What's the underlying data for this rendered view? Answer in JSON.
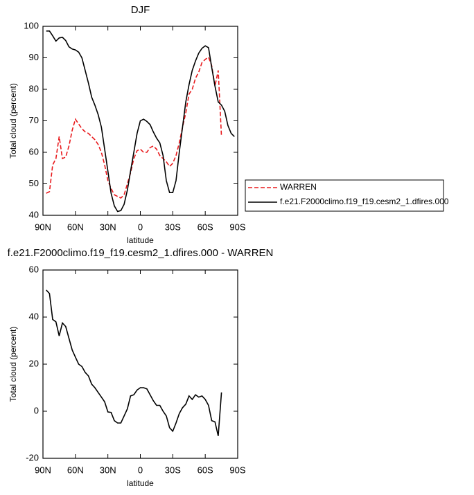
{
  "chart_data": [
    {
      "type": "line",
      "title": "DJF",
      "xlabel": "latitude",
      "ylabel": "Total cloud (percent)",
      "x": [
        87,
        84,
        81,
        78,
        75,
        72,
        69,
        66,
        63,
        60,
        57,
        54,
        51,
        48,
        45,
        42,
        39,
        36,
        33,
        30,
        27,
        24,
        21,
        18,
        15,
        12,
        9,
        6,
        3,
        0,
        -3,
        -6,
        -9,
        -12,
        -15,
        -18,
        -21,
        -24,
        -27,
        -30,
        -33,
        -36,
        -39,
        -42,
        -45,
        -48,
        -51,
        -54,
        -57,
        -60,
        -63,
        -66,
        -69,
        -72,
        -75,
        -78,
        -81,
        -84,
        -87
      ],
      "series": [
        {
          "name": "WARREN",
          "color": "#e8191c",
          "style": "dashed",
          "values": [
            47,
            47.5,
            56,
            58,
            65,
            58,
            58.5,
            62,
            67,
            70.5,
            69,
            67.5,
            66.5,
            66,
            65,
            64,
            62.5,
            60,
            56,
            51,
            48.5,
            46.5,
            46,
            45.5,
            46.5,
            50,
            53.5,
            58,
            60.5,
            61,
            60,
            60,
            61.5,
            62,
            61,
            59,
            58,
            57,
            55.5,
            56.5,
            59,
            63,
            68,
            72.5,
            78.5,
            80,
            83.5,
            85.5,
            88.5,
            89.5,
            90.2,
            87.5,
            81,
            86,
            65,
            null,
            null,
            null,
            null
          ]
        },
        {
          "name": "f.e21.F2000climo.f19_f19.cesm2_1.dfires.000",
          "color": "#000000",
          "style": "solid",
          "values": [
            98.5,
            98.5,
            97,
            95.3,
            96.3,
            96.5,
            95.5,
            93.5,
            92.8,
            92.5,
            91.8,
            90,
            86,
            82,
            77.5,
            75,
            72,
            68,
            61,
            54,
            47,
            43,
            41.2,
            41.5,
            43.5,
            48,
            54,
            60,
            66,
            70,
            70.5,
            69.8,
            68.8,
            66.5,
            64.5,
            63,
            59,
            51,
            47.2,
            47.2,
            51,
            60,
            68,
            76,
            81.5,
            86,
            89,
            91.5,
            93,
            93.8,
            93.2,
            87,
            81,
            76,
            75,
            73,
            68.5,
            66,
            65
          ]
        }
      ],
      "xlim": [
        90,
        -90
      ],
      "xticks": [
        {
          "value": 90,
          "label": "90N"
        },
        {
          "value": 60,
          "label": "60N"
        },
        {
          "value": 30,
          "label": "30N"
        },
        0,
        {
          "value": -30,
          "label": "30S"
        },
        {
          "value": -60,
          "label": "60S"
        },
        {
          "value": -90,
          "label": "90S"
        }
      ],
      "ylim": [
        40,
        100
      ],
      "yticks": [
        40,
        50,
        60,
        70,
        80,
        90,
        100
      ],
      "legend": "right"
    },
    {
      "type": "line",
      "title": "f.e21.F2000climo.f19_f19.cesm2_1.dfires.000 - WARREN",
      "xlabel": "latitude",
      "ylabel": "Total cloud (percent)",
      "x": [
        87,
        84,
        81,
        78,
        75,
        72,
        69,
        66,
        63,
        60,
        57,
        54,
        51,
        48,
        45,
        42,
        39,
        36,
        33,
        30,
        27,
        24,
        21,
        18,
        15,
        12,
        9,
        6,
        3,
        0,
        -3,
        -6,
        -9,
        -12,
        -15,
        -18,
        -21,
        -24,
        -27,
        -30,
        -33,
        -36,
        -39,
        -42,
        -45,
        -48,
        -51,
        -54,
        -57,
        -60,
        -63,
        -66,
        -69,
        -72,
        -75,
        -78,
        -81,
        -84,
        -87
      ],
      "series": [
        {
          "color": "#000000",
          "style": "solid",
          "values": [
            51.5,
            50,
            39,
            38,
            32,
            37.5,
            36,
            31,
            26,
            23,
            20,
            19,
            16.5,
            15,
            11.5,
            10,
            8,
            6,
            4,
            -0.3,
            -0.5,
            -4,
            -5,
            -5,
            -2,
            1,
            6.5,
            7,
            9,
            10,
            10,
            9.5,
            7,
            4.5,
            2.5,
            2.5,
            0,
            -2,
            -7,
            -8.5,
            -5,
            -1,
            1.5,
            3,
            6.5,
            5,
            7,
            6,
            6.5,
            5,
            2.5,
            -4,
            -4.5,
            -10.5,
            8,
            null,
            null,
            null,
            null
          ]
        }
      ],
      "xlim": [
        90,
        -90
      ],
      "xticks": [
        {
          "value": 90,
          "label": "90N"
        },
        {
          "value": 60,
          "label": "60N"
        },
        {
          "value": 30,
          "label": "30N"
        },
        0,
        {
          "value": -30,
          "label": "30S"
        },
        {
          "value": -60,
          "label": "60S"
        },
        {
          "value": -90,
          "label": "90S"
        }
      ],
      "ylim": [
        -20,
        60
      ],
      "yticks": [
        -20,
        0,
        20,
        40,
        60
      ]
    }
  ]
}
